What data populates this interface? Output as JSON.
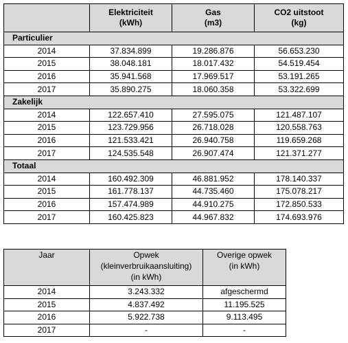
{
  "table1": {
    "header": [
      "Elektriciteit\n(kWh)",
      "Gas\n(m3)",
      "CO2 uitstoot\n(kg)"
    ],
    "sections": [
      {
        "name": "Particulier",
        "rows": [
          [
            "2014",
            "37.834.899",
            "19.286.876",
            "56.653.230"
          ],
          [
            "2015",
            "38.048.181",
            "18.017.432",
            "54.519.454"
          ],
          [
            "2016",
            "35.941.568",
            "17.969.517",
            "53.191.265"
          ],
          [
            "2017",
            "35.890.275",
            "18.060.358",
            "53.322.699"
          ]
        ]
      },
      {
        "name": "Zakelijk",
        "rows": [
          [
            "2014",
            "122.657.410",
            "27.595.075",
            "121.487.107"
          ],
          [
            "2015",
            "123.729.956",
            "26.718.028",
            "120.558.763"
          ],
          [
            "2016",
            "121.533.421",
            "26.940.758",
            "119.659.268"
          ],
          [
            "2017",
            "124.535.548",
            "26.907.474",
            "121.371.277"
          ]
        ]
      },
      {
        "name": "Totaal",
        "rows": [
          [
            "2014",
            "160.492.309",
            "46.881.952",
            "178.140.337"
          ],
          [
            "2015",
            "161.778.137",
            "44.735.460",
            "175.078.217"
          ],
          [
            "2016",
            "157.474.989",
            "44.910.275",
            "172.850.533"
          ],
          [
            "2017",
            "160.425.823",
            "44.967.832",
            "174.693.976"
          ]
        ]
      }
    ]
  },
  "table2": {
    "header": [
      "Jaar",
      "Opwek\n(kleinverbruikaansluiting)\n(in kWh)",
      "Overige opwek\n(in kWh)"
    ],
    "rows": [
      [
        "2014",
        "3.243.332",
        "afgeschermd"
      ],
      [
        "2015",
        "4.837.492",
        "11.195.525"
      ],
      [
        "2016",
        "5.922.738",
        "9.113.495"
      ],
      [
        "2017",
        "-",
        "-"
      ]
    ]
  }
}
